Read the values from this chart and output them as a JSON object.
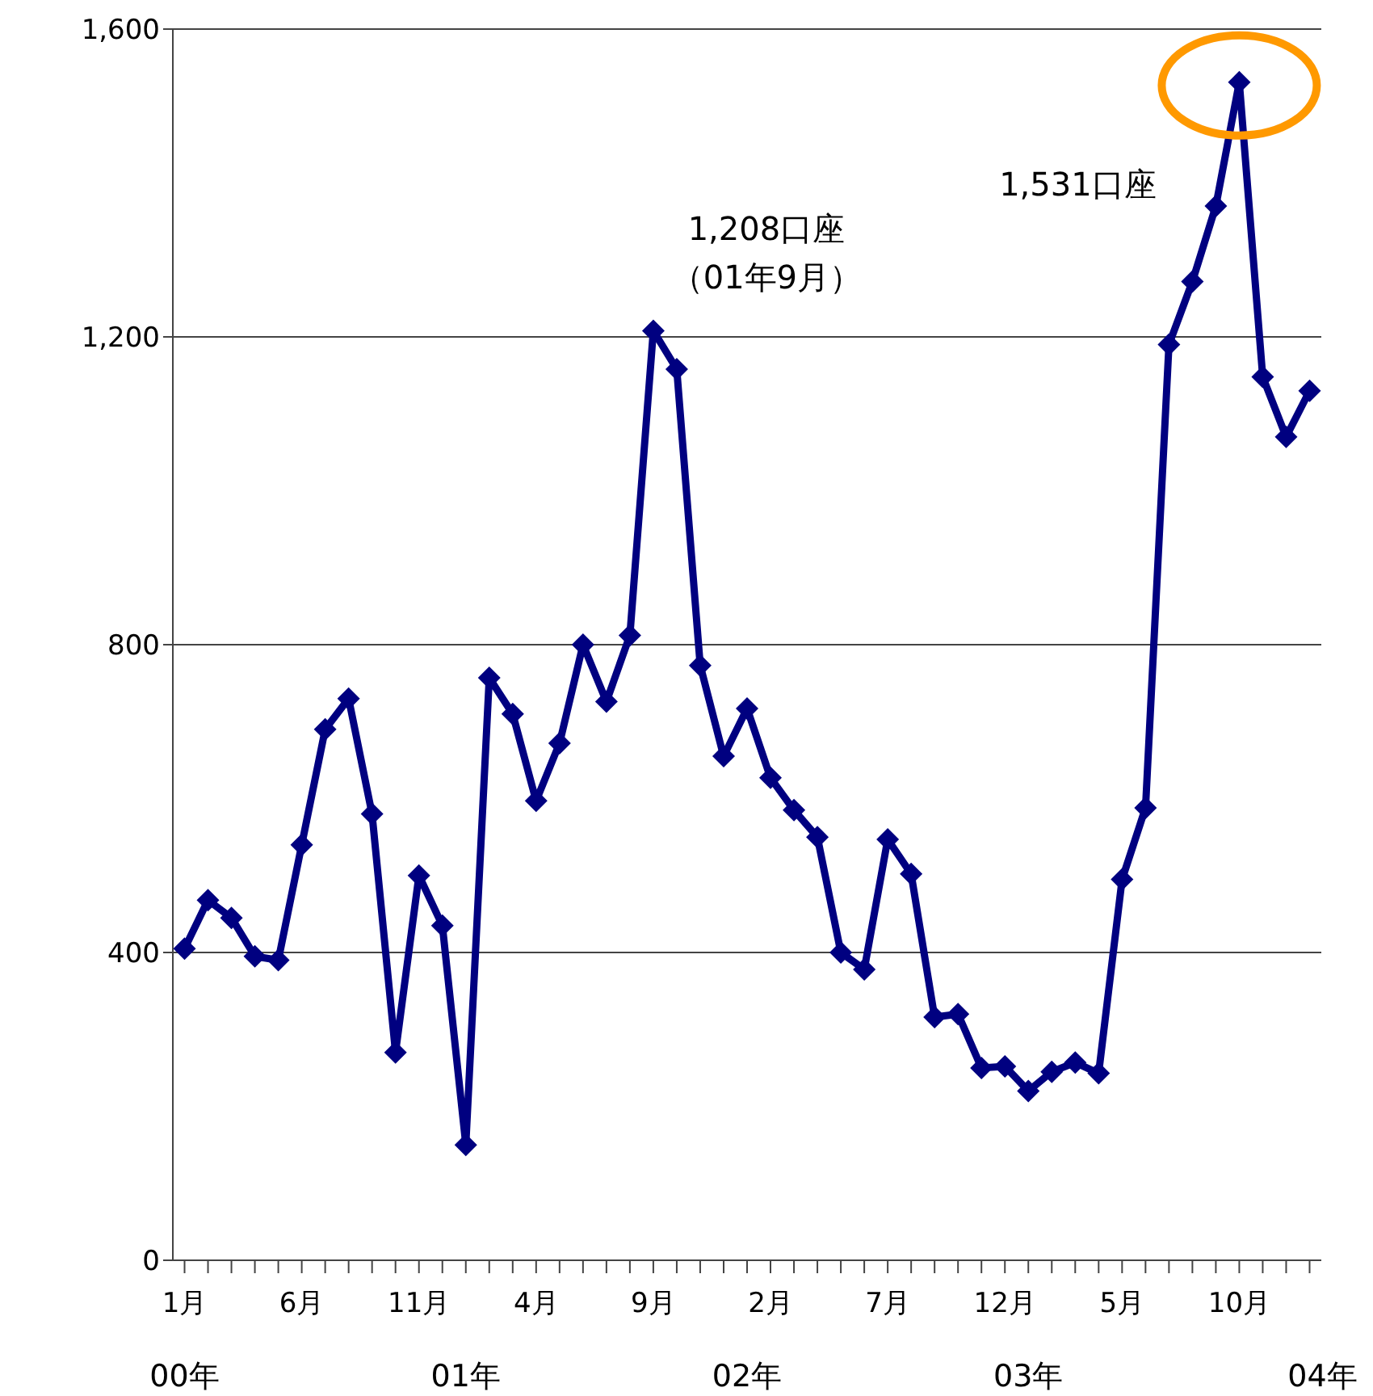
{
  "chart_data": {
    "type": "line",
    "categories": [
      "1月",
      null,
      null,
      null,
      null,
      "6月",
      null,
      null,
      null,
      null,
      "11月",
      null,
      null,
      null,
      null,
      "4月",
      null,
      null,
      null,
      null,
      "9月",
      null,
      null,
      null,
      null,
      "2月",
      null,
      null,
      null,
      null,
      "7月",
      null,
      null,
      null,
      null,
      "12月",
      null,
      null,
      null,
      null,
      "5月",
      null,
      null,
      null,
      null,
      "10月",
      null,
      null,
      null
    ],
    "series": [
      {
        "color": "#000080",
        "values": [
          405,
          468,
          445,
          395,
          390,
          540,
          690,
          730,
          580,
          270,
          500,
          435,
          150,
          757,
          710,
          597,
          672,
          800,
          726,
          812,
          1208,
          1158,
          773,
          655,
          717,
          627,
          585,
          550,
          400,
          378,
          547,
          502,
          316,
          320,
          250,
          252,
          220,
          245,
          257,
          243,
          495,
          588,
          1190,
          1272,
          1370,
          1531,
          1148,
          1070,
          1130
        ]
      }
    ],
    "ylim": [
      0,
      1600
    ],
    "yticks": [
      0,
      {
        "value": 400,
        "label": "400"
      },
      {
        "value": 800,
        "label": "800"
      },
      {
        "value": 1200,
        "label": "1,200"
      },
      {
        "value": 1600,
        "label": "1,600"
      }
    ],
    "grid": "y",
    "marker": "diamond",
    "line_style": "solid",
    "legend": false,
    "annotations": [
      {
        "text": "1,208口座（01年9月）",
        "x": "9月",
        "y": 1208
      },
      "1,531口座",
      "00年",
      "01年",
      "02年",
      "03年",
      "04年"
    ]
  }
}
